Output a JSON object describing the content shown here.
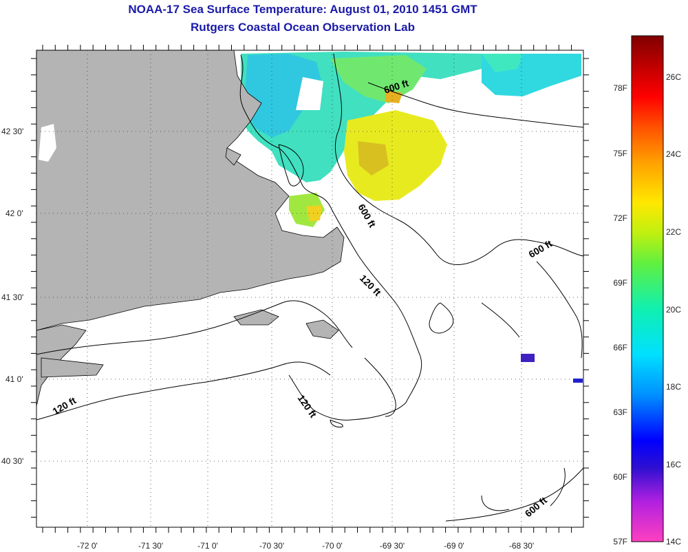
{
  "title": {
    "line1": "NOAA-17 Sea Surface Temperature:  August 01, 2010 1451 GMT",
    "line2": "Rutgers Coastal Ocean Observation Lab"
  },
  "axes": {
    "lat_labels": [
      "42 30'",
      "42 0'",
      "41 30'",
      "41 0'",
      "40 30'"
    ],
    "lon_labels": [
      "-72 0'",
      "-71 30'",
      "-71 0'",
      "-70 30'",
      "-70 0'",
      "-69 30'",
      "-69 0'",
      "-68 30'"
    ]
  },
  "contours": {
    "labels": [
      "600 ft",
      "600 ft",
      "600 ft",
      "120 ft",
      "120 ft",
      "120 ft",
      "600 ft"
    ]
  },
  "colorbar": {
    "fahrenheit": [
      "78F",
      "75F",
      "72F",
      "69F",
      "66F",
      "63F",
      "60F",
      "57F"
    ],
    "celsius": [
      "26C",
      "24C",
      "22C",
      "20C",
      "18C",
      "16C",
      "14C"
    ],
    "min_c": 14,
    "max_c": 27
  },
  "colors": {
    "land": "#b4b4b4",
    "title": "#1a1aa8"
  }
}
